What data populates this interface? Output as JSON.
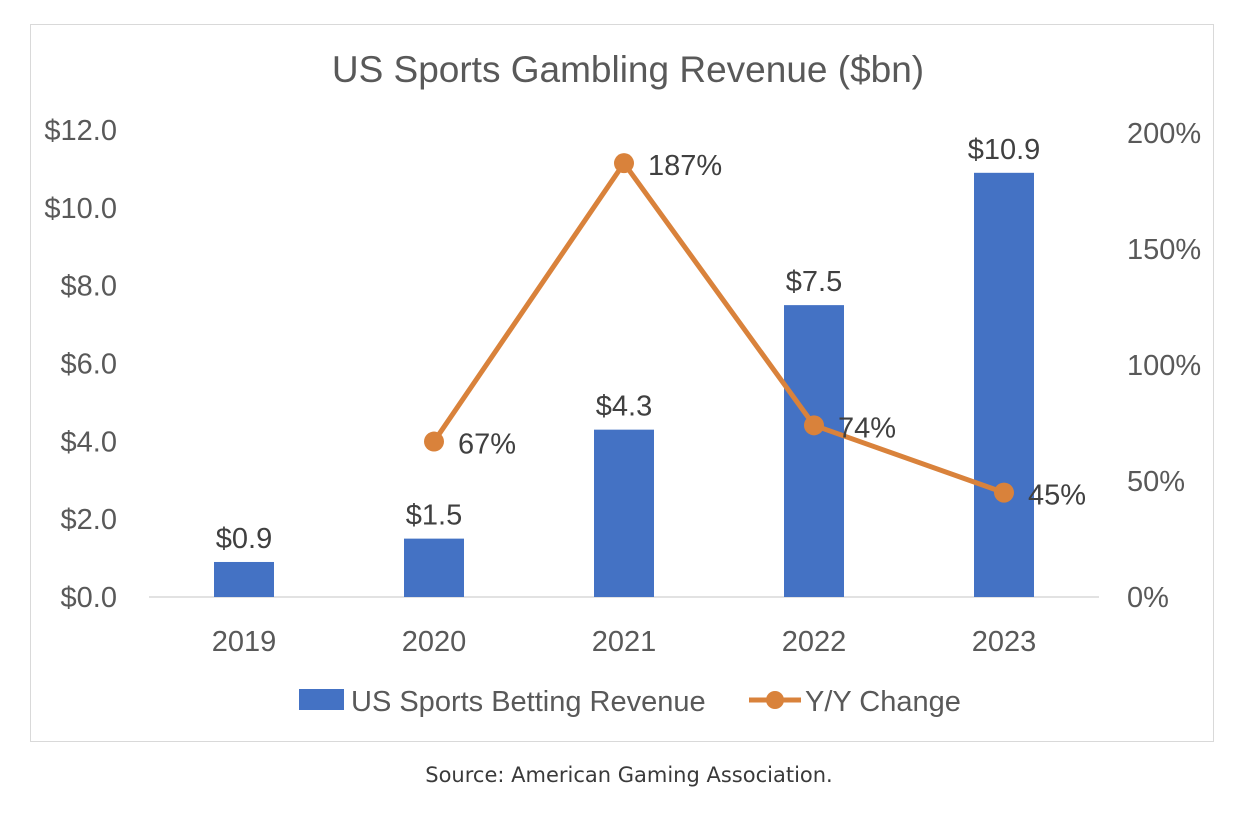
{
  "chart_data": {
    "type": "bar",
    "title": "US Sports Gambling Revenue ($bn)",
    "categories": [
      "2019",
      "2020",
      "2021",
      "2022",
      "2023"
    ],
    "series": [
      {
        "name": "US Sports Betting Revenue",
        "type": "bar",
        "axis": "left",
        "color": "#4472C4",
        "values": [
          0.9,
          1.5,
          4.3,
          7.5,
          10.9
        ],
        "labels": [
          "$0.9",
          "$1.5",
          "$4.3",
          "$7.5",
          "$10.9"
        ]
      },
      {
        "name": "Y/Y Change",
        "type": "line",
        "axis": "right",
        "color": "#D9823B",
        "values": [
          null,
          67,
          187,
          74,
          45
        ],
        "labels": [
          "",
          "67%",
          "187%",
          "74%",
          "45%"
        ]
      }
    ],
    "y_left": {
      "min": 0,
      "max": 12,
      "ticks": [
        "$0.0",
        "$2.0",
        "$4.0",
        "$6.0",
        "$8.0",
        "$10.0",
        "$12.0"
      ]
    },
    "y_right": {
      "min": 0,
      "max": 200,
      "ticks": [
        "0%",
        "50%",
        "100%",
        "150%",
        "200%"
      ]
    },
    "grid": false,
    "legend_position": "bottom"
  },
  "source": "Source: American Gaming Association."
}
